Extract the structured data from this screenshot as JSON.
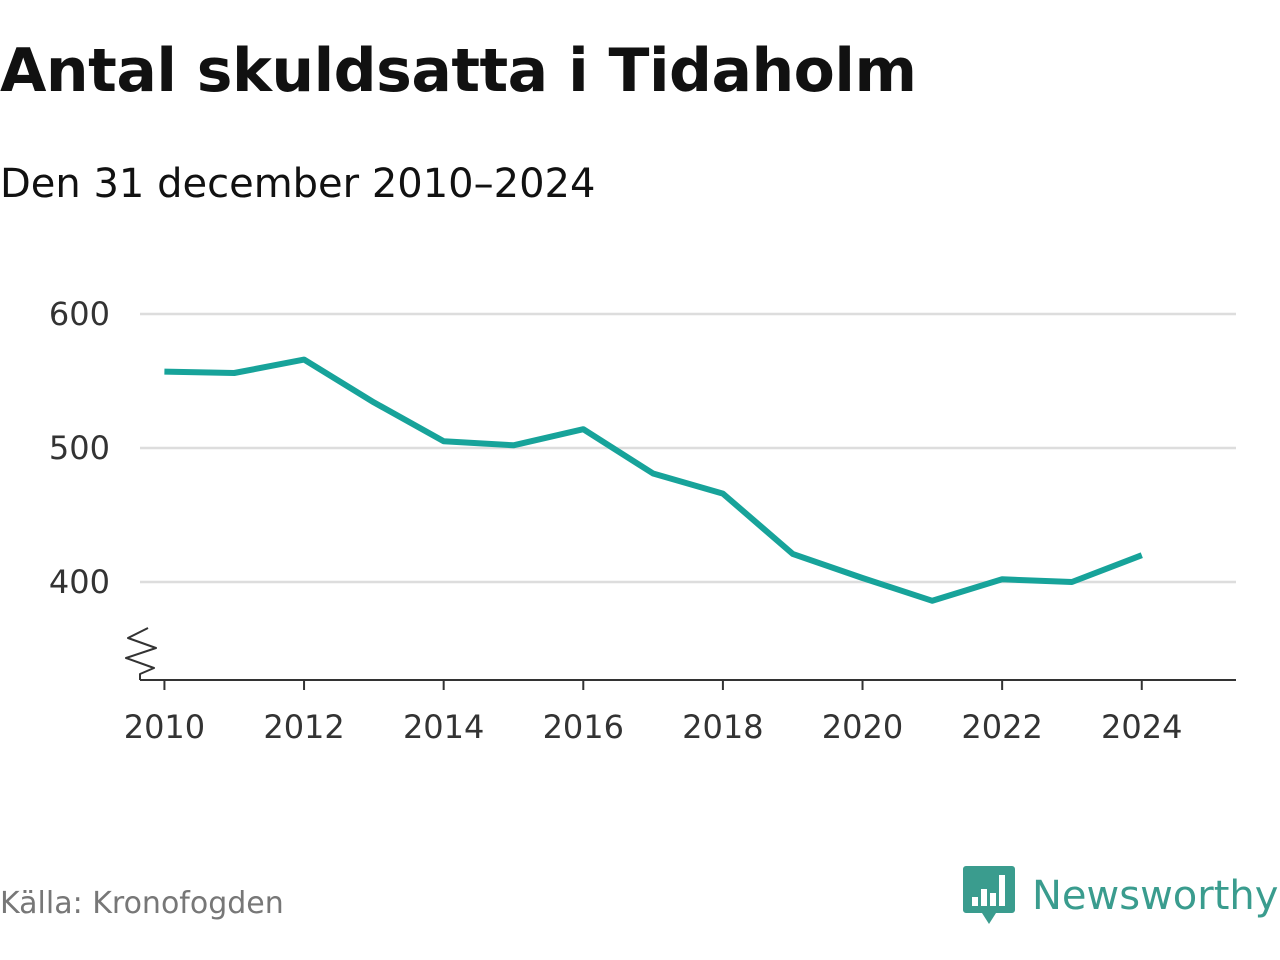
{
  "title": "Antal skuldsatta i Tidaholm",
  "subtitle": "Den 31 december 2010–2024",
  "source": "Källa: Kronofogden",
  "brand": {
    "name": "Newsworthy",
    "icon": "newsworthy-logo-icon",
    "color": "#3a9c8e"
  },
  "colors": {
    "line": "#17a39a",
    "grid": "#dddddd",
    "axis": "#333333"
  },
  "chart_data": {
    "type": "line",
    "title": "Antal skuldsatta i Tidaholm",
    "subtitle": "Den 31 december 2010–2024",
    "xlabel": "",
    "ylabel": "",
    "x": [
      2010,
      2011,
      2012,
      2013,
      2014,
      2015,
      2016,
      2017,
      2018,
      2019,
      2020,
      2021,
      2022,
      2023,
      2024
    ],
    "series": [
      {
        "name": "Antal skuldsatta",
        "values": [
          557,
          556,
          566,
          534,
          505,
          502,
          514,
          481,
          466,
          421,
          403,
          386,
          402,
          400,
          420
        ]
      }
    ],
    "ylim": [
      330,
      600
    ],
    "xlim": [
      2009.65,
      2025.35
    ],
    "y_ticks": [
      "600",
      "500",
      "400"
    ],
    "x_ticks": [
      "2010",
      "2012",
      "2014",
      "2016",
      "2018",
      "2020",
      "2022",
      "2024"
    ],
    "grid": true,
    "axis_break": true,
    "legend": "none"
  }
}
